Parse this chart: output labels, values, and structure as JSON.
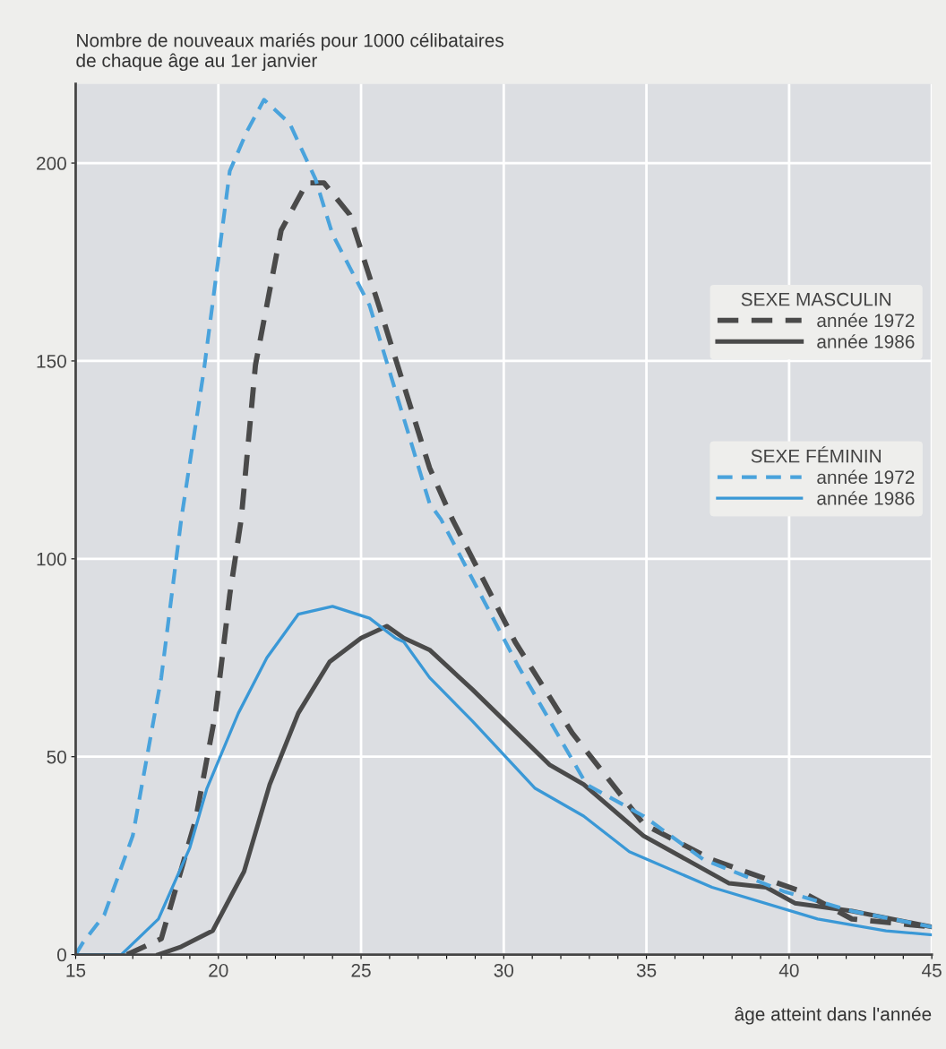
{
  "chart_data": {
    "type": "line",
    "ylabel": "Nombre de nouveaux mariés pour 1000 célibataires\nde chaque âge au 1er janvier",
    "xlabel": "âge atteint dans l'année",
    "annotations": [
      "SEXE MASCULIN",
      "SEXE FÉMININ"
    ],
    "series": [
      {
        "name": "année 1972",
        "color": "#4a4a4a",
        "line_style": "dashed",
        "x": [
          16.8,
          18,
          19.2,
          19.9,
          20.4,
          20.8,
          21.3,
          22.2,
          23.1,
          23.7,
          24.6,
          25.8,
          27.4,
          28.2,
          30.4,
          32.4,
          34.9,
          37.3,
          40.4,
          42.2,
          45
        ],
        "values": [
          0,
          4,
          34,
          61,
          91,
          110,
          149,
          183,
          195,
          195,
          187,
          160,
          123,
          110,
          79,
          56,
          33,
          24,
          16,
          9,
          7
        ]
      },
      {
        "name": "année 1986",
        "color": "#4a4a4a",
        "line_style": "solid",
        "x": [
          17.9,
          18.7,
          19.8,
          20.9,
          21.8,
          22.8,
          23.9,
          25,
          25.9,
          26.5,
          27.4,
          28.9,
          31.6,
          32.8,
          34.9,
          37.9,
          39.2,
          40.2,
          42.2,
          45
        ],
        "values": [
          0,
          2,
          6,
          21,
          43,
          61,
          74,
          80,
          83,
          80,
          77,
          67,
          48,
          43,
          30,
          18,
          17,
          13,
          11,
          7
        ]
      },
      {
        "name": "année 1972",
        "color": "#4aa3dc",
        "line_style": "dashed",
        "x": [
          15,
          15.25,
          16,
          17,
          17.45,
          18,
          18.7,
          19.5,
          20.4,
          21,
          21.6,
          22.5,
          23.4,
          24,
          25.3,
          27.4,
          27.8,
          30.5,
          32.9,
          34.9,
          37,
          39.8,
          42.2,
          45
        ],
        "values": [
          0,
          3,
          10,
          30,
          48,
          70,
          110,
          148,
          198,
          208,
          216,
          210,
          196,
          182,
          164,
          114,
          110,
          73,
          43,
          35,
          24,
          16,
          11,
          7
        ]
      },
      {
        "name": "année 1986",
        "color": "#3a98d6",
        "line_style": "solid",
        "x": [
          15,
          16.6,
          17.9,
          19,
          19.6,
          20.7,
          21.7,
          22.8,
          24,
          25.3,
          26.2,
          26.5,
          27.4,
          28.9,
          31.1,
          32.8,
          34.4,
          37.3,
          41,
          43.4,
          45
        ],
        "values": [
          0,
          0,
          9,
          27,
          42,
          61,
          75,
          86,
          88,
          85,
          80,
          79,
          70,
          59,
          42,
          35,
          26,
          17,
          9,
          6,
          5
        ]
      }
    ],
    "xlim": [
      15,
      45
    ],
    "xticks": [
      15,
      {
        "value": 16,
        "label": null
      },
      {
        "value": 17,
        "label": null
      },
      {
        "value": 18,
        "label": null
      },
      {
        "value": 19,
        "label": null
      },
      20,
      {
        "value": 21,
        "label": null
      },
      {
        "value": 22,
        "label": null
      },
      {
        "value": 23,
        "label": null
      },
      {
        "value": 24,
        "label": null
      },
      25,
      {
        "value": 26,
        "label": null
      },
      {
        "value": 27,
        "label": null
      },
      {
        "value": 28,
        "label": null
      },
      {
        "value": 29,
        "label": null
      },
      30,
      {
        "value": 31,
        "label": null
      },
      {
        "value": 32,
        "label": null
      },
      {
        "value": 33,
        "label": null
      },
      {
        "value": 34,
        "label": null
      },
      35,
      {
        "value": 36,
        "label": null
      },
      {
        "value": 37,
        "label": null
      },
      {
        "value": 38,
        "label": null
      },
      {
        "value": 39,
        "label": null
      },
      40,
      {
        "value": 41,
        "label": null
      },
      {
        "value": 42,
        "label": null
      },
      {
        "value": 43,
        "label": null
      },
      {
        "value": 44,
        "label": null
      },
      45
    ],
    "ylim": [
      0,
      220
    ],
    "yticks": [
      0,
      50,
      100,
      150,
      200
    ],
    "grid": true,
    "legend": "right",
    "marker": "none"
  }
}
